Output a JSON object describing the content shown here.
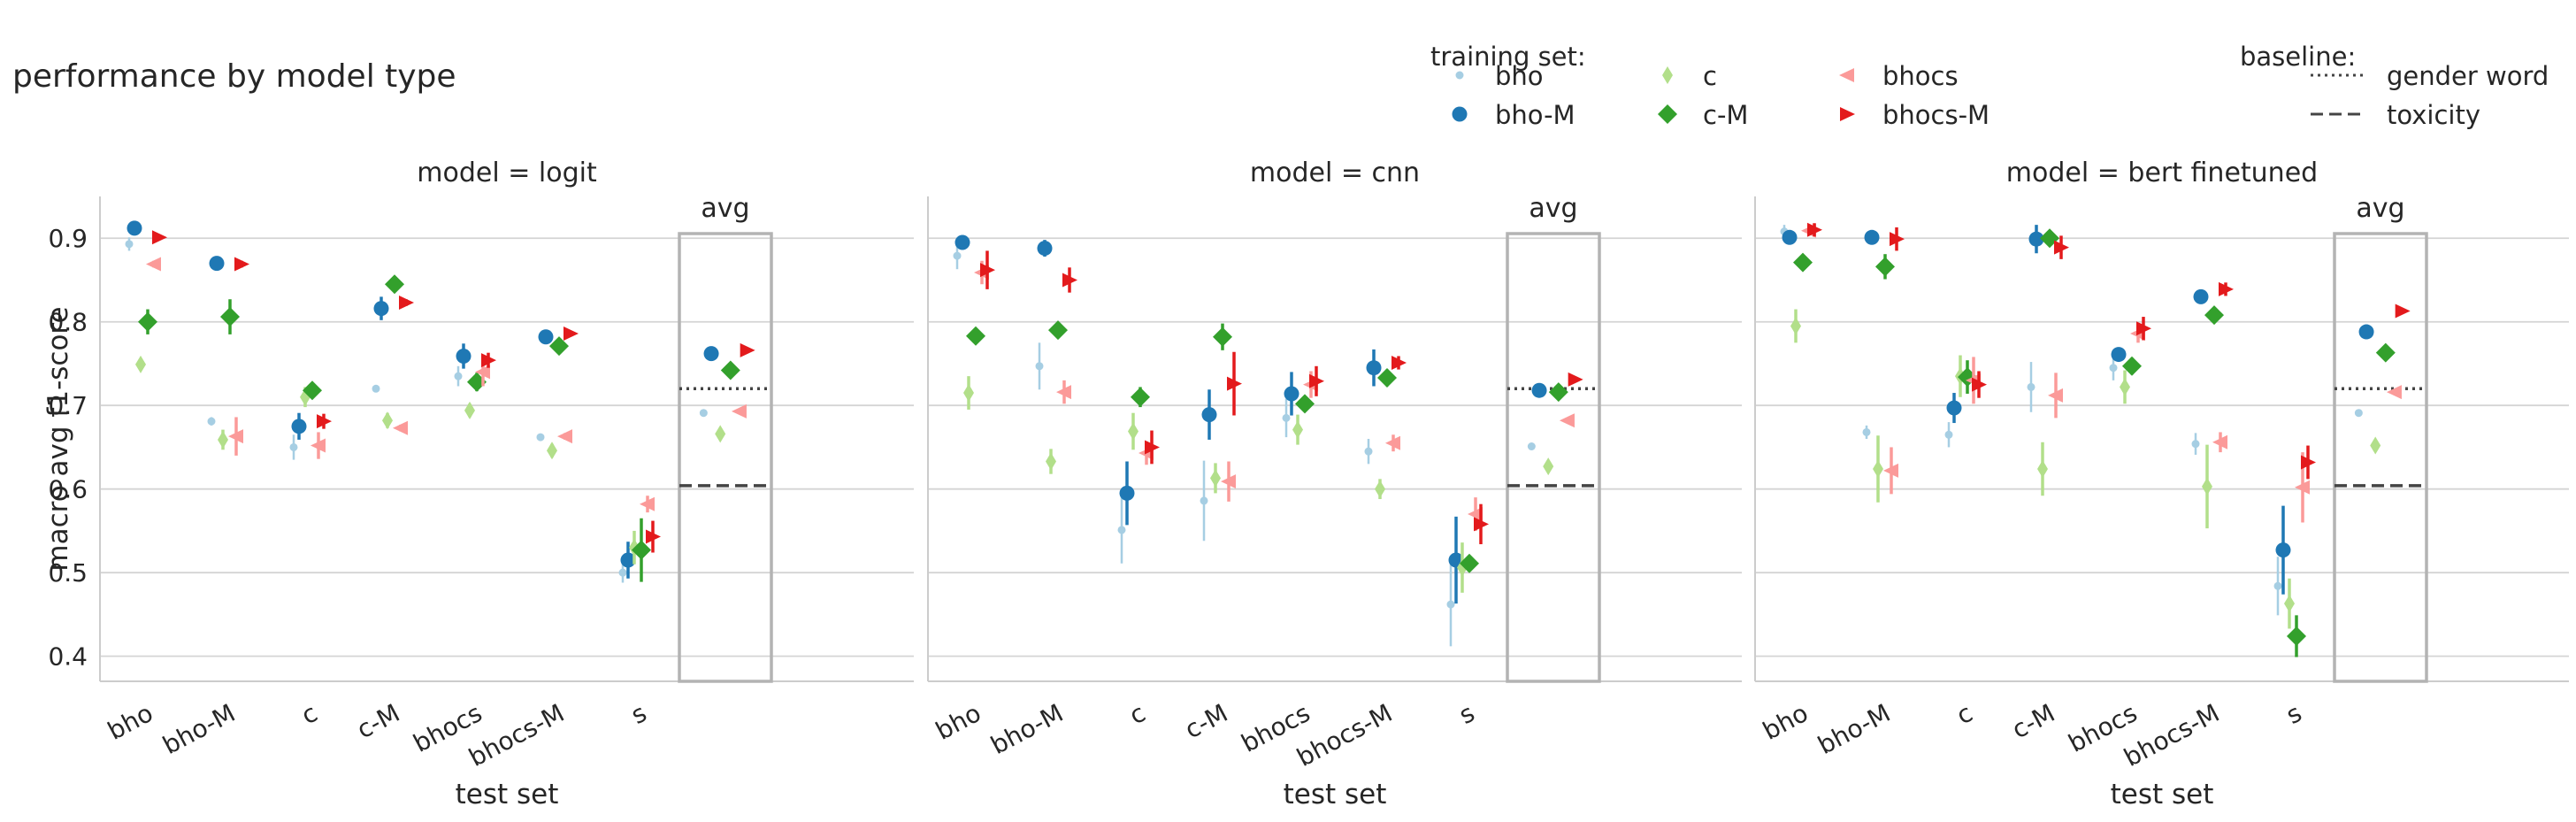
{
  "title": "performance by model type",
  "legend": {
    "training_title": "training set:",
    "baseline_title": "baseline:",
    "baseline_items": [
      {
        "label": "gender word",
        "style": "dotted"
      },
      {
        "label": "toxicity",
        "style": "dashed"
      }
    ]
  },
  "series_style": [
    {
      "name": "bho",
      "color": "#a6cee3",
      "marker": "dot"
    },
    {
      "name": "bho-M",
      "color": "#1f78b4",
      "marker": "circle"
    },
    {
      "name": "c",
      "color": "#b2df8a",
      "marker": "thin-diamond"
    },
    {
      "name": "c-M",
      "color": "#33a02c",
      "marker": "diamond"
    },
    {
      "name": "bhocs",
      "color": "#fb9a99",
      "marker": "triangle-left"
    },
    {
      "name": "bhocs-M",
      "color": "#e31a1c",
      "marker": "triangle-right"
    }
  ],
  "chart_data": [
    {
      "type": "scatter",
      "panel_title": "model = logit",
      "xlabel": "test set",
      "ylabel": "macro avg f1-score",
      "categories": [
        "bho",
        "bho-M",
        "c",
        "c-M",
        "bhocs",
        "bhocs-M",
        "s"
      ],
      "avg_label": "avg",
      "ylim": [
        0.37,
        0.95
      ],
      "yticks": [
        "0.4",
        "0.5",
        "0.6",
        "0.7",
        "0.8",
        "0.9"
      ],
      "grid": true,
      "series": [
        {
          "name": "bho",
          "values": [
            0.893,
            0.681,
            0.65,
            0.72,
            0.735,
            0.662,
            0.5
          ],
          "err": [
            0.008,
            0.005,
            0.015,
            0.003,
            0.012,
            0.003,
            0.012
          ],
          "avg": 0.691
        },
        {
          "name": "bho-M",
          "values": [
            0.912,
            0.87,
            0.675,
            0.816,
            0.759,
            0.782,
            0.515
          ],
          "err": [
            0.004,
            0.005,
            0.016,
            0.014,
            0.015,
            0.007,
            0.022
          ],
          "avg": 0.762
        },
        {
          "name": "c",
          "values": [
            0.749,
            0.659,
            0.71,
            0.682,
            0.694,
            0.646,
            0.53
          ],
          "err": [
            0.007,
            0.012,
            0.012,
            0.009,
            0.008,
            0.008,
            0.02
          ],
          "avg": 0.666
        },
        {
          "name": "c-M",
          "values": [
            0.8,
            0.806,
            0.718,
            0.845,
            0.728,
            0.771,
            0.527
          ],
          "err": [
            0.015,
            0.021,
            0.004,
            0.004,
            0.011,
            0.004,
            0.038
          ],
          "avg": 0.742
        },
        {
          "name": "bhocs",
          "values": [
            0.869,
            0.663,
            0.652,
            0.673,
            0.74,
            0.663,
            0.582
          ],
          "err": [
            0.004,
            0.023,
            0.016,
            0.004,
            0.017,
            0.004,
            0.01
          ],
          "avg": 0.693
        },
        {
          "name": "bhocs-M",
          "values": [
            0.901,
            0.869,
            0.681,
            0.823,
            0.754,
            0.786,
            0.543
          ],
          "err": [
            0.003,
            0.004,
            0.009,
            0.004,
            0.009,
            0.003,
            0.019
          ],
          "avg": 0.766
        }
      ],
      "baselines": {
        "gender word": 0.72,
        "toxicity": 0.604
      }
    },
    {
      "type": "scatter",
      "panel_title": "model = cnn",
      "xlabel": "test set",
      "ylabel": "",
      "categories": [
        "bho",
        "bho-M",
        "c",
        "c-M",
        "bhocs",
        "bhocs-M",
        "s"
      ],
      "avg_label": "avg",
      "ylim": [
        0.37,
        0.95
      ],
      "yticks": [
        "0.4",
        "0.5",
        "0.6",
        "0.7",
        "0.8",
        "0.9"
      ],
      "grid": true,
      "series": [
        {
          "name": "bho",
          "values": [
            0.879,
            0.747,
            0.551,
            0.586,
            0.685,
            0.645,
            0.462
          ],
          "err": [
            0.016,
            0.028,
            0.04,
            0.048,
            0.023,
            0.015,
            0.05
          ],
          "avg": 0.651
        },
        {
          "name": "bho-M",
          "values": [
            0.895,
            0.888,
            0.595,
            0.689,
            0.714,
            0.745,
            0.515
          ],
          "err": [
            0.008,
            0.01,
            0.038,
            0.03,
            0.026,
            0.022,
            0.052
          ],
          "avg": 0.718
        },
        {
          "name": "c",
          "values": [
            0.715,
            0.633,
            0.669,
            0.613,
            0.671,
            0.6,
            0.506
          ],
          "err": [
            0.02,
            0.015,
            0.022,
            0.018,
            0.018,
            0.012,
            0.03
          ],
          "avg": 0.627
        },
        {
          "name": "c-M",
          "values": [
            0.783,
            0.79,
            0.71,
            0.782,
            0.702,
            0.733,
            0.511
          ],
          "err": [
            0.004,
            0.004,
            0.012,
            0.016,
            0.008,
            0.01,
            0.005
          ],
          "avg": 0.716
        },
        {
          "name": "bhocs",
          "values": [
            0.859,
            0.716,
            0.643,
            0.609,
            0.725,
            0.655,
            0.57
          ],
          "err": [
            0.014,
            0.014,
            0.014,
            0.024,
            0.016,
            0.01,
            0.02
          ],
          "avg": 0.682
        },
        {
          "name": "bhocs-M",
          "values": [
            0.862,
            0.85,
            0.65,
            0.726,
            0.729,
            0.751,
            0.558
          ],
          "err": [
            0.023,
            0.015,
            0.02,
            0.038,
            0.018,
            0.008,
            0.024
          ],
          "avg": 0.731
        }
      ],
      "baselines": {
        "gender word": 0.72,
        "toxicity": 0.604
      }
    },
    {
      "type": "scatter",
      "panel_title": "model = bert finetuned",
      "xlabel": "test set",
      "ylabel": "",
      "categories": [
        "bho",
        "bho-M",
        "c",
        "c-M",
        "bhocs",
        "bhocs-M",
        "s"
      ],
      "avg_label": "avg",
      "ylim": [
        0.37,
        0.95
      ],
      "yticks": [
        "0.4",
        "0.5",
        "0.6",
        "0.7",
        "0.8",
        "0.9"
      ],
      "grid": true,
      "series": [
        {
          "name": "bho",
          "values": [
            0.908,
            0.668,
            0.665,
            0.722,
            0.745,
            0.654,
            0.484
          ],
          "err": [
            0.008,
            0.008,
            0.015,
            0.03,
            0.015,
            0.013,
            0.035
          ],
          "avg": 0.691
        },
        {
          "name": "bho-M",
          "values": [
            0.901,
            0.901,
            0.697,
            0.899,
            0.761,
            0.83,
            0.527
          ],
          "err": [
            0.008,
            0.008,
            0.018,
            0.017,
            0.008,
            0.006,
            0.053
          ],
          "avg": 0.788
        },
        {
          "name": "c",
          "values": [
            0.795,
            0.624,
            0.735,
            0.624,
            0.722,
            0.603,
            0.463
          ],
          "err": [
            0.02,
            0.04,
            0.025,
            0.032,
            0.02,
            0.05,
            0.03
          ],
          "avg": 0.652
        },
        {
          "name": "c-M",
          "values": [
            0.871,
            0.866,
            0.734,
            0.9,
            0.747,
            0.808,
            0.424
          ],
          "err": [
            0.006,
            0.015,
            0.02,
            0.008,
            0.01,
            0.005,
            0.025
          ],
          "avg": 0.763
        },
        {
          "name": "bhocs",
          "values": [
            0.909,
            0.622,
            0.73,
            0.712,
            0.786,
            0.656,
            0.602
          ],
          "err": [
            0.004,
            0.028,
            0.028,
            0.027,
            0.011,
            0.012,
            0.042
          ],
          "avg": 0.716
        },
        {
          "name": "bhocs-M",
          "values": [
            0.91,
            0.899,
            0.725,
            0.889,
            0.792,
            0.839,
            0.632
          ],
          "err": [
            0.008,
            0.014,
            0.016,
            0.014,
            0.014,
            0.008,
            0.02
          ],
          "avg": 0.813
        }
      ],
      "baselines": {
        "gender word": 0.72,
        "toxicity": 0.604
      }
    }
  ]
}
